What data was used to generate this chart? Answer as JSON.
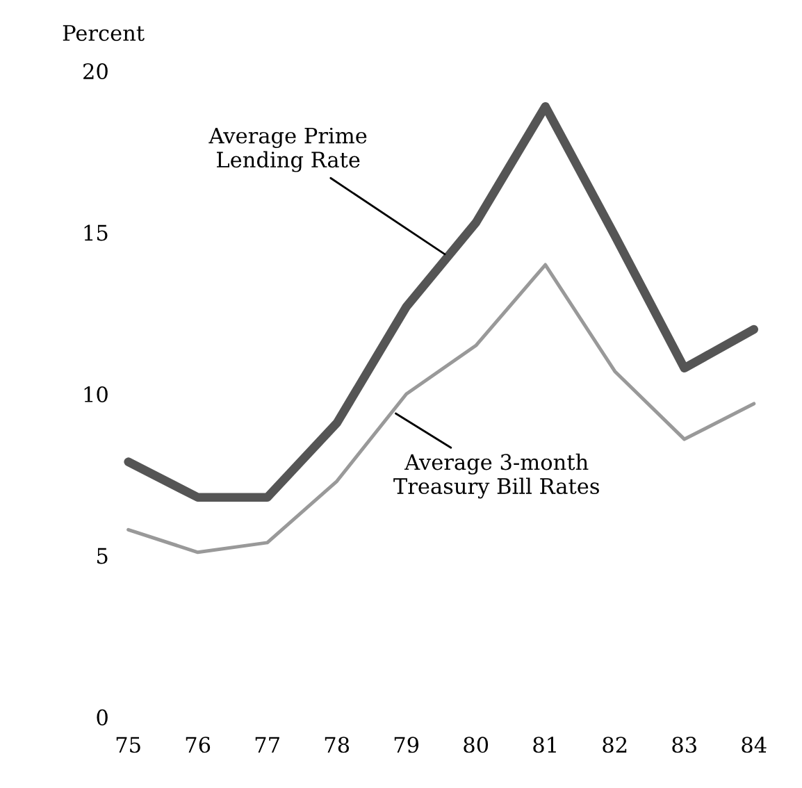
{
  "chart_data": {
    "type": "line",
    "ylabel": "Percent",
    "x": [
      75,
      76,
      77,
      78,
      79,
      80,
      81,
      82,
      83,
      84
    ],
    "series": [
      {
        "color": "#555555",
        "values": [
          7.9,
          6.8,
          6.8,
          9.1,
          12.7,
          15.3,
          18.9,
          14.9,
          10.8,
          12.0
        ]
      },
      {
        "color": "#999999",
        "values": [
          5.8,
          5.1,
          5.4,
          7.3,
          10.0,
          11.5,
          14.0,
          10.7,
          8.6,
          9.7
        ]
      }
    ],
    "xlim": [
      75,
      84
    ],
    "xticks": [
      75,
      76,
      77,
      78,
      79,
      80,
      81,
      82,
      83,
      84
    ],
    "ylim": [
      0,
      20
    ],
    "yticks": [
      0,
      5,
      10,
      15,
      20
    ],
    "annotations": [
      {
        "text": "Average Prime\nLending Rate",
        "x": 79.6,
        "y": 14.26
      },
      {
        "text": "Average 3-month\nTreasury Bill Rates",
        "x": 78.8,
        "y": 9.46
      }
    ],
    "grid": false,
    "legend": false,
    "marker": "none",
    "line_style": "solid"
  }
}
